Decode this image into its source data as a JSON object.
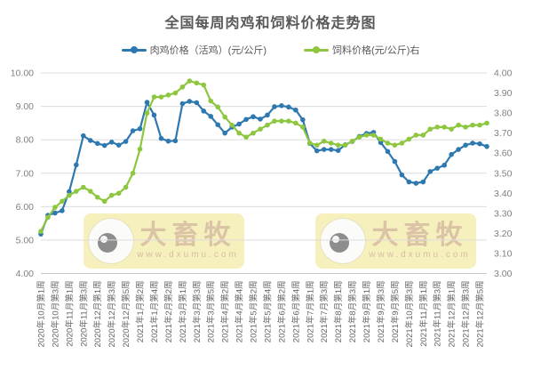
{
  "chart": {
    "watermark": {
      "brand": "大畜牧",
      "url": "www.dxumu.com"
    }
  },
  "chart_data": {
    "type": "line",
    "title": "全国每周肉鸡和饲料价格走势图",
    "legend_position": "top",
    "grid": "horizontal",
    "x_label_every": 2,
    "x_tick_labels": [
      "2020年10月第1周",
      "2020年10月第3周",
      "2020年11月第1周",
      "2020年11月第3周",
      "2020年12月第1周",
      "2020年12月第3周",
      "2020年12月第5周",
      "2021年1月第2周",
      "2021年1月第4周",
      "2021年2月第2周",
      "2021年3月第1周",
      "2021年3月第3周",
      "2021年3月第5周",
      "2021年4月第2周",
      "2021年4月第4周",
      "2021年5月第2周",
      "2021年5月第4周",
      "2021年6月第2周",
      "2021年6月第4周",
      "2021年7月第1周",
      "2021年7月第3周",
      "2021年8月第1周",
      "2021年8月第3周",
      "2021年9月第1周",
      "2021年9月第3周",
      "2021年9月第5周",
      "2021年10月第3周",
      "2021年11月第1周",
      "2021年11月第3周",
      "2021年12月第1周",
      "2021年12月第3周",
      "2021年12月第5周"
    ],
    "left_axis": {
      "min": 4.0,
      "max": 10.0,
      "step": 1.0,
      "tick_labels": [
        "10.00",
        "9.00",
        "8.00",
        "7.00",
        "6.00",
        "5.00",
        "4.00"
      ]
    },
    "right_axis": {
      "min": 3.0,
      "max": 4.0,
      "step": 0.1,
      "tick_labels": [
        "4.00",
        "3.90",
        "3.80",
        "3.70",
        "3.60",
        "3.50",
        "3.40",
        "3.30",
        "3.20",
        "3.10",
        "3.00"
      ]
    },
    "series": [
      {
        "name": "肉鸡价格（活鸡）(元/公斤)",
        "axis": "left",
        "color": "#2e78b0",
        "values": [
          5.18,
          5.74,
          5.81,
          5.88,
          6.45,
          7.25,
          8.12,
          7.98,
          7.89,
          7.83,
          7.93,
          7.84,
          7.95,
          8.27,
          8.33,
          9.12,
          8.74,
          8.04,
          7.96,
          7.97,
          9.08,
          9.15,
          9.11,
          8.86,
          8.7,
          8.45,
          8.2,
          8.38,
          8.47,
          8.61,
          8.69,
          8.62,
          8.74,
          8.99,
          9.02,
          8.98,
          8.89,
          8.6,
          7.89,
          7.67,
          7.71,
          7.71,
          7.68,
          7.85,
          7.95,
          8.1,
          8.19,
          8.22,
          7.92,
          7.65,
          7.35,
          6.95,
          6.74,
          6.7,
          6.74,
          7.05,
          7.15,
          7.24,
          7.56,
          7.71,
          7.84,
          7.9,
          7.88,
          7.8
        ]
      },
      {
        "name": "饲料价格(元/公斤)右",
        "axis": "right",
        "color": "#8dc63f",
        "values": [
          3.21,
          3.28,
          3.33,
          3.36,
          3.39,
          3.41,
          3.43,
          3.41,
          3.38,
          3.36,
          3.39,
          3.4,
          3.43,
          3.5,
          3.62,
          3.8,
          3.88,
          3.88,
          3.89,
          3.9,
          3.93,
          3.96,
          3.95,
          3.94,
          3.86,
          3.83,
          3.78,
          3.74,
          3.7,
          3.68,
          3.7,
          3.72,
          3.74,
          3.76,
          3.76,
          3.76,
          3.75,
          3.73,
          3.65,
          3.64,
          3.66,
          3.65,
          3.64,
          3.64,
          3.66,
          3.68,
          3.69,
          3.69,
          3.67,
          3.65,
          3.64,
          3.65,
          3.67,
          3.69,
          3.69,
          3.72,
          3.73,
          3.73,
          3.72,
          3.74,
          3.73,
          3.74,
          3.74,
          3.75
        ]
      }
    ],
    "style": {
      "grid_color": "#dcdcdc",
      "axis_line_color": "#c6c6c6",
      "tick_label_color": "#808080",
      "x_label_color": "#666666",
      "title_color": "#595959"
    }
  }
}
